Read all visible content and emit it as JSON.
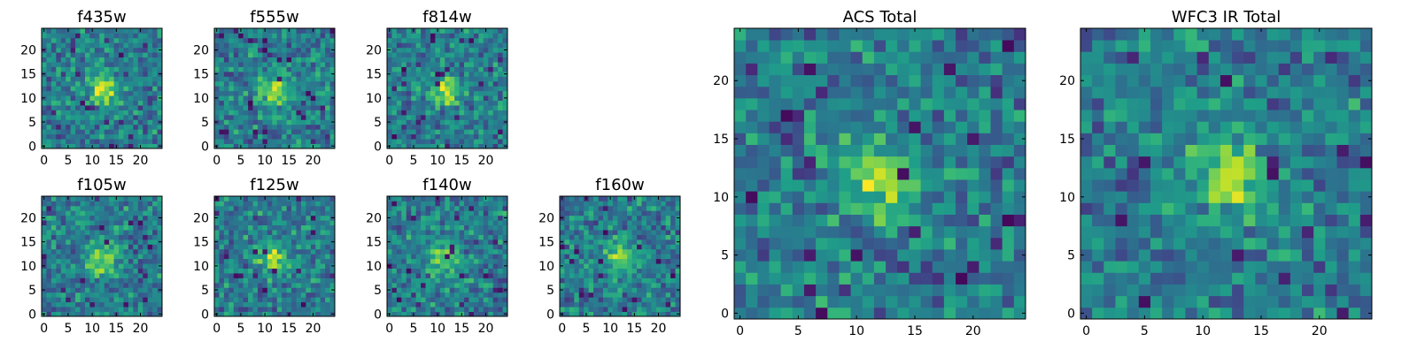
{
  "chart_data": [
    {
      "type": "heatmap",
      "title": "f435w",
      "xticks": [
        "0",
        "5",
        "10",
        "15",
        "20"
      ],
      "yticks": [
        "0",
        "5",
        "10",
        "15",
        "20"
      ],
      "grid_size": [
        25,
        25
      ],
      "xlim": [
        -0.5,
        24.5
      ],
      "ylim": [
        -0.5,
        24.5
      ],
      "colormap": "viridis"
    },
    {
      "type": "heatmap",
      "title": "f555w",
      "xticks": [
        "0",
        "5",
        "10",
        "15",
        "20"
      ],
      "yticks": [
        "0",
        "5",
        "10",
        "15",
        "20"
      ],
      "grid_size": [
        25,
        25
      ],
      "xlim": [
        -0.5,
        24.5
      ],
      "ylim": [
        -0.5,
        24.5
      ],
      "colormap": "viridis"
    },
    {
      "type": "heatmap",
      "title": "f814w",
      "xticks": [
        "0",
        "5",
        "10",
        "15",
        "20"
      ],
      "yticks": [
        "0",
        "5",
        "10",
        "15",
        "20"
      ],
      "grid_size": [
        25,
        25
      ],
      "xlim": [
        -0.5,
        24.5
      ],
      "ylim": [
        -0.5,
        24.5
      ],
      "colormap": "viridis"
    },
    {
      "type": "heatmap",
      "title": "f105w",
      "xticks": [
        "0",
        "5",
        "10",
        "15",
        "20"
      ],
      "yticks": [
        "0",
        "5",
        "10",
        "15",
        "20"
      ],
      "grid_size": [
        25,
        25
      ],
      "xlim": [
        -0.5,
        24.5
      ],
      "ylim": [
        -0.5,
        24.5
      ],
      "colormap": "viridis"
    },
    {
      "type": "heatmap",
      "title": "f125w",
      "xticks": [
        "0",
        "5",
        "10",
        "15",
        "20"
      ],
      "yticks": [
        "0",
        "5",
        "10",
        "15",
        "20"
      ],
      "grid_size": [
        25,
        25
      ],
      "xlim": [
        -0.5,
        24.5
      ],
      "ylim": [
        -0.5,
        24.5
      ],
      "colormap": "viridis"
    },
    {
      "type": "heatmap",
      "title": "f140w",
      "xticks": [
        "0",
        "5",
        "10",
        "15",
        "20"
      ],
      "yticks": [
        "0",
        "5",
        "10",
        "15",
        "20"
      ],
      "grid_size": [
        25,
        25
      ],
      "xlim": [
        -0.5,
        24.5
      ],
      "ylim": [
        -0.5,
        24.5
      ],
      "colormap": "viridis"
    },
    {
      "type": "heatmap",
      "title": "f160w",
      "xticks": [
        "0",
        "5",
        "10",
        "15",
        "20"
      ],
      "yticks": [
        "0",
        "5",
        "10",
        "15",
        "20"
      ],
      "grid_size": [
        25,
        25
      ],
      "xlim": [
        -0.5,
        24.5
      ],
      "ylim": [
        -0.5,
        24.5
      ],
      "colormap": "viridis"
    },
    {
      "type": "heatmap",
      "title": "ACS Total",
      "xticks": [
        "0",
        "5",
        "10",
        "15",
        "20"
      ],
      "yticks": [
        "0",
        "5",
        "10",
        "15",
        "20"
      ],
      "grid_size": [
        25,
        25
      ],
      "xlim": [
        -0.5,
        24.5
      ],
      "ylim": [
        -0.5,
        24.5
      ],
      "colormap": "viridis"
    },
    {
      "type": "heatmap",
      "title": "WFC3 IR Total",
      "xticks": [
        "0",
        "5",
        "10",
        "15",
        "20"
      ],
      "yticks": [
        "0",
        "5",
        "10",
        "15",
        "20"
      ],
      "grid_size": [
        25,
        25
      ],
      "xlim": [
        -0.5,
        24.5
      ],
      "ylim": [
        -0.5,
        24.5
      ],
      "colormap": "viridis"
    }
  ]
}
